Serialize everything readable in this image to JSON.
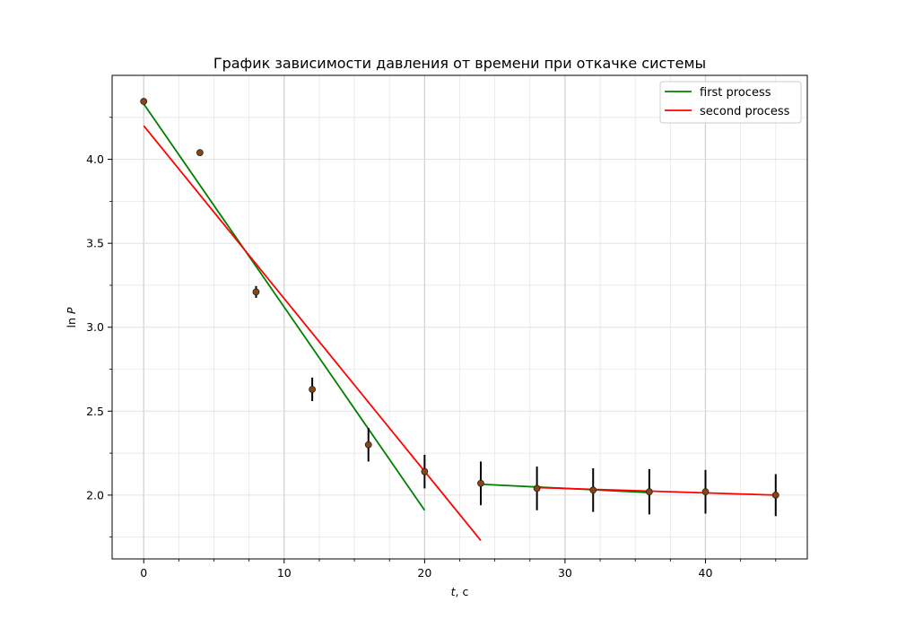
{
  "chart_data": {
    "type": "scatter",
    "title": "График зависимости давления от времени при откачке системы",
    "xlabel_var": "t",
    "xlabel_unit": ", с",
    "ylabel_prefix": "ln ",
    "ylabel_var": "P",
    "xlim": [
      -2.25,
      47.25
    ],
    "ylim": [
      1.62,
      4.5
    ],
    "x_ticks": [
      0,
      10,
      20,
      30,
      40
    ],
    "y_ticks": [
      2.0,
      2.5,
      3.0,
      3.5,
      4.0
    ],
    "x_tick_labels": [
      "0",
      "10",
      "20",
      "30",
      "40"
    ],
    "y_tick_labels": [
      "2.0",
      "2.5",
      "3.0",
      "3.5",
      "4.0"
    ],
    "x_minor_ticks": [
      2.5,
      5,
      7.5,
      12.5,
      15,
      17.5,
      22.5,
      25,
      27.5,
      32.5,
      35,
      37.5,
      42.5,
      45
    ],
    "y_minor_ticks": [
      1.75,
      2.25,
      2.75,
      3.25,
      3.75,
      4.25
    ],
    "grid": true,
    "legend_position": "top-right",
    "points": [
      {
        "x": 0,
        "y": 4.345,
        "err": 0.01
      },
      {
        "x": 4,
        "y": 4.04,
        "err": 0.01
      },
      {
        "x": 8,
        "y": 3.21,
        "err": 0.035
      },
      {
        "x": 12,
        "y": 2.63,
        "err": 0.07
      },
      {
        "x": 16,
        "y": 2.3,
        "err": 0.1
      },
      {
        "x": 20,
        "y": 2.14,
        "err": 0.1
      },
      {
        "x": 24,
        "y": 2.07,
        "err": 0.13
      },
      {
        "x": 28,
        "y": 2.04,
        "err": 0.13
      },
      {
        "x": 32,
        "y": 2.03,
        "err": 0.13
      },
      {
        "x": 36,
        "y": 2.02,
        "err": 0.135
      },
      {
        "x": 40,
        "y": 2.02,
        "err": 0.13
      },
      {
        "x": 45,
        "y": 2.0,
        "err": 0.125
      }
    ],
    "series": [
      {
        "name": "first process",
        "color": "#008000",
        "segments": [
          [
            [
              0,
              4.33
            ],
            [
              20,
              1.91
            ]
          ],
          [
            [
              24,
              2.065
            ],
            [
              36,
              2.015
            ]
          ]
        ]
      },
      {
        "name": "second process",
        "color": "#ff0000",
        "segments": [
          [
            [
              0,
              4.2
            ],
            [
              24,
              1.73
            ]
          ],
          [
            [
              28,
              2.045
            ],
            [
              45,
              2.0
            ]
          ]
        ]
      }
    ],
    "marker_color": "#8b4513",
    "errorbar_color": "#000000"
  }
}
